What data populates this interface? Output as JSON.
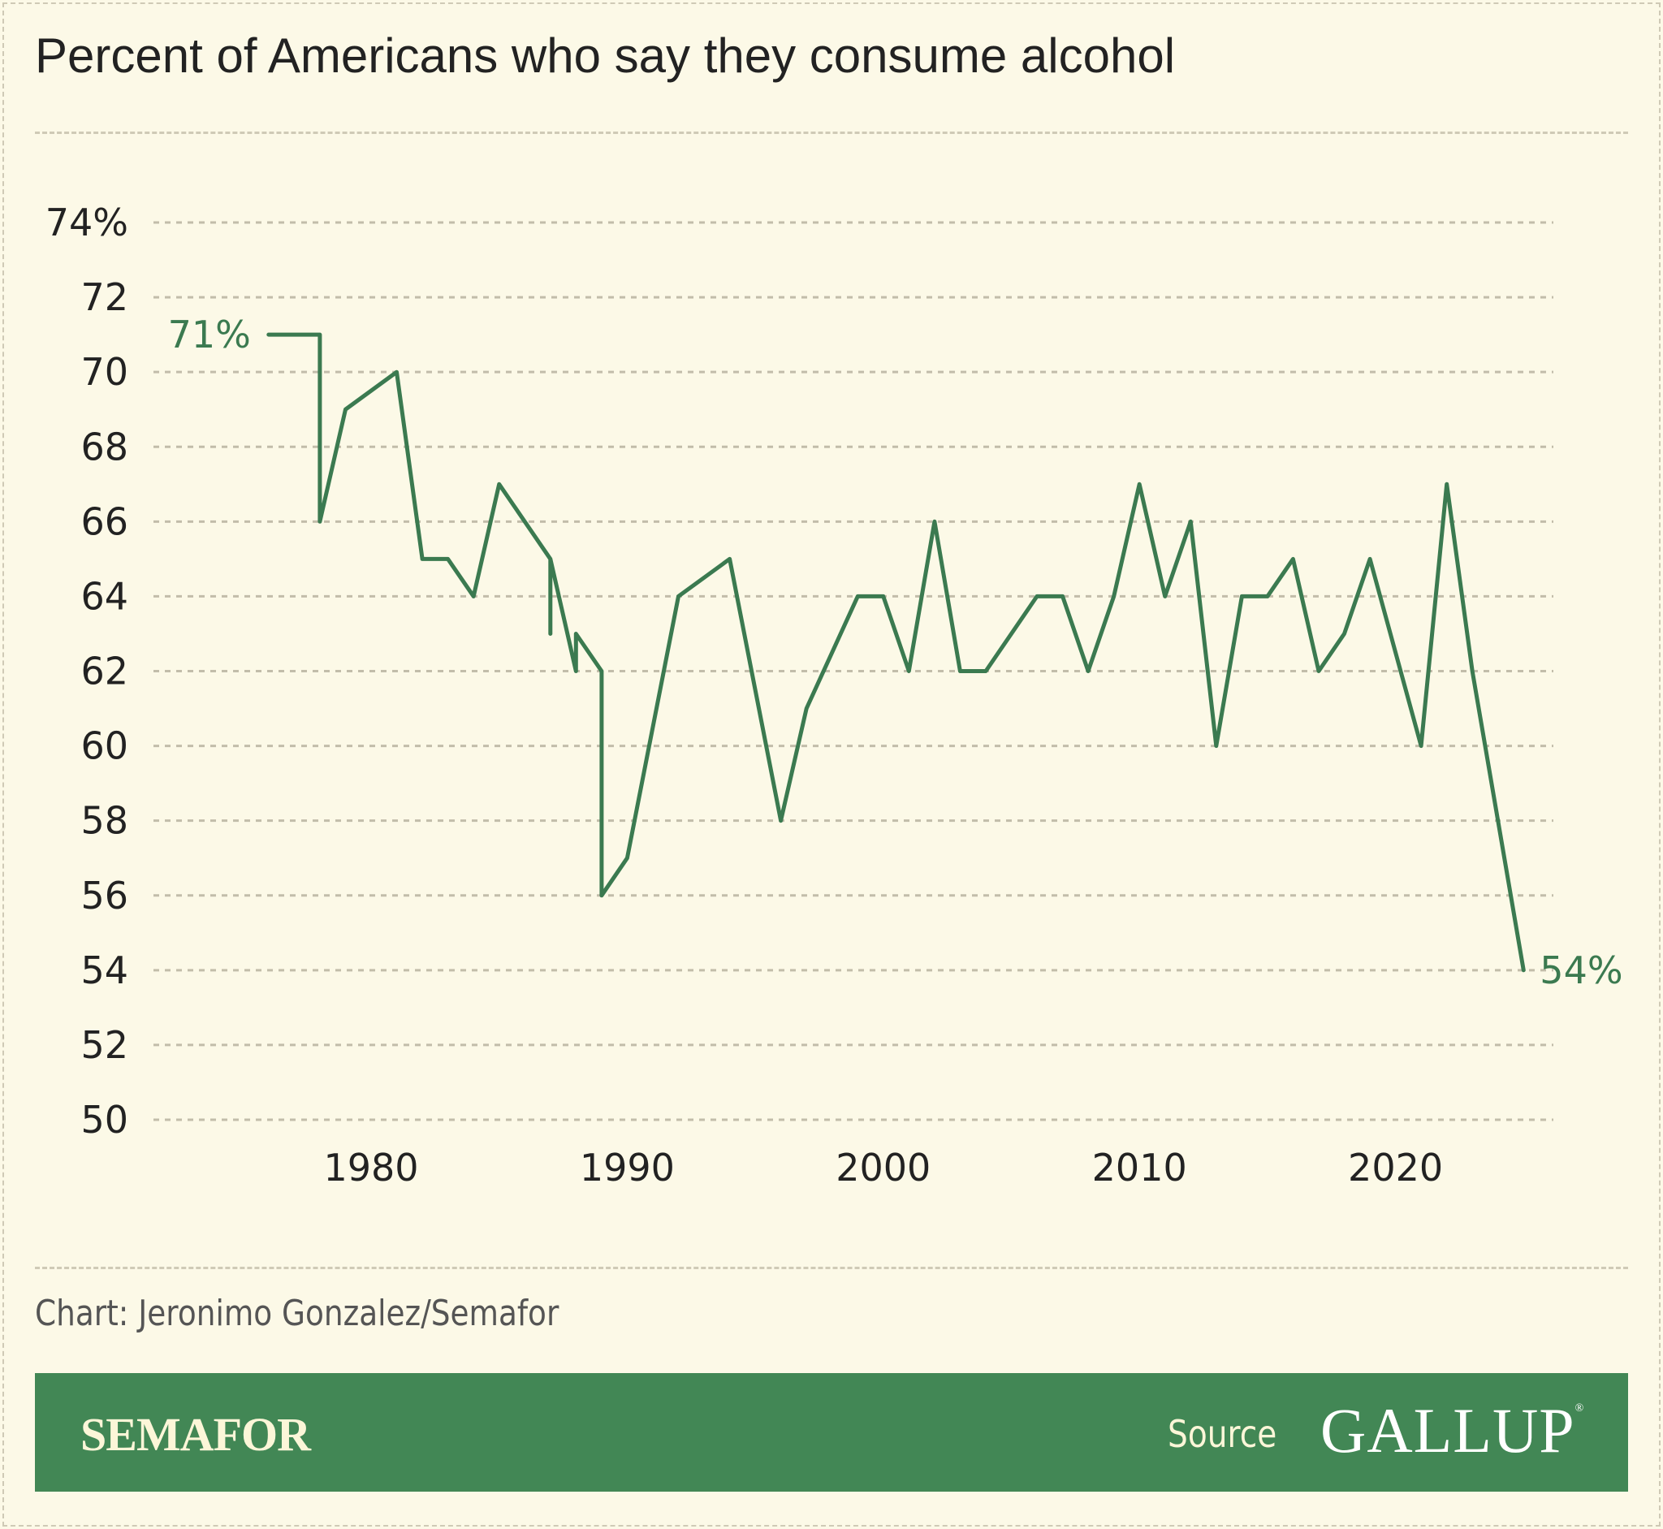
{
  "chart_data": {
    "type": "line",
    "title": "Percent of Americans who say they consume alcohol",
    "xlabel": "",
    "ylabel": "",
    "ylim": [
      50,
      74
    ],
    "xlim": [
      1973,
      2026
    ],
    "grid": true,
    "y_ticks": [
      {
        "value": 74,
        "label": "74%"
      },
      {
        "value": 72,
        "label": "72"
      },
      {
        "value": 70,
        "label": "70"
      },
      {
        "value": 68,
        "label": "68"
      },
      {
        "value": 66,
        "label": "66"
      },
      {
        "value": 64,
        "label": "64"
      },
      {
        "value": 62,
        "label": "62"
      },
      {
        "value": 60,
        "label": "60"
      },
      {
        "value": 58,
        "label": "58"
      },
      {
        "value": 56,
        "label": "56"
      },
      {
        "value": 54,
        "label": "54"
      },
      {
        "value": 52,
        "label": "52"
      },
      {
        "value": 50,
        "label": "50"
      }
    ],
    "x_ticks": [
      {
        "value": 1980,
        "label": "1980"
      },
      {
        "value": 1990,
        "label": "1990"
      },
      {
        "value": 2000,
        "label": "2000"
      },
      {
        "value": 2010,
        "label": "2010"
      },
      {
        "value": 2020,
        "label": "2020"
      }
    ],
    "series": [
      {
        "color": "#3b7a50",
        "points": [
          [
            1976,
            71
          ],
          [
            1978,
            71
          ],
          [
            1978,
            66
          ],
          [
            1979,
            69
          ],
          [
            1981,
            70
          ],
          [
            1982,
            65
          ],
          [
            1983,
            65
          ],
          [
            1984,
            64
          ],
          [
            1985,
            67
          ],
          [
            1987,
            65
          ],
          [
            1987,
            63
          ],
          [
            1987,
            65
          ],
          [
            1988,
            62
          ],
          [
            1988,
            63
          ],
          [
            1989,
            62
          ],
          [
            1989,
            56
          ],
          [
            1990,
            57
          ],
          [
            1992,
            64
          ],
          [
            1994,
            65
          ],
          [
            1996,
            58
          ],
          [
            1997,
            61
          ],
          [
            1999,
            64
          ],
          [
            2000,
            64
          ],
          [
            2001,
            62
          ],
          [
            2002,
            66
          ],
          [
            2003,
            62
          ],
          [
            2004,
            62
          ],
          [
            2006,
            64
          ],
          [
            2007,
            64
          ],
          [
            2008,
            62
          ],
          [
            2009,
            64
          ],
          [
            2010,
            67
          ],
          [
            2011,
            64
          ],
          [
            2012,
            66
          ],
          [
            2013,
            60
          ],
          [
            2014,
            64
          ],
          [
            2015,
            64
          ],
          [
            2016,
            65
          ],
          [
            2017,
            62
          ],
          [
            2018,
            63
          ],
          [
            2019,
            65
          ],
          [
            2021,
            60
          ],
          [
            2022,
            67
          ],
          [
            2023,
            62
          ],
          [
            2025,
            54
          ]
        ]
      }
    ],
    "annotations": [
      {
        "x": 1976,
        "y": 71,
        "text": "71%",
        "side": "left"
      },
      {
        "x": 2025,
        "y": 54,
        "text": "54%",
        "side": "right"
      }
    ]
  },
  "credit": "Chart: Jeronimo Gonzalez/Semafor",
  "footer": {
    "brand": "SEMAFOR",
    "source_label": "Source",
    "source_logo": "GALLUP",
    "background": "#428755"
  }
}
